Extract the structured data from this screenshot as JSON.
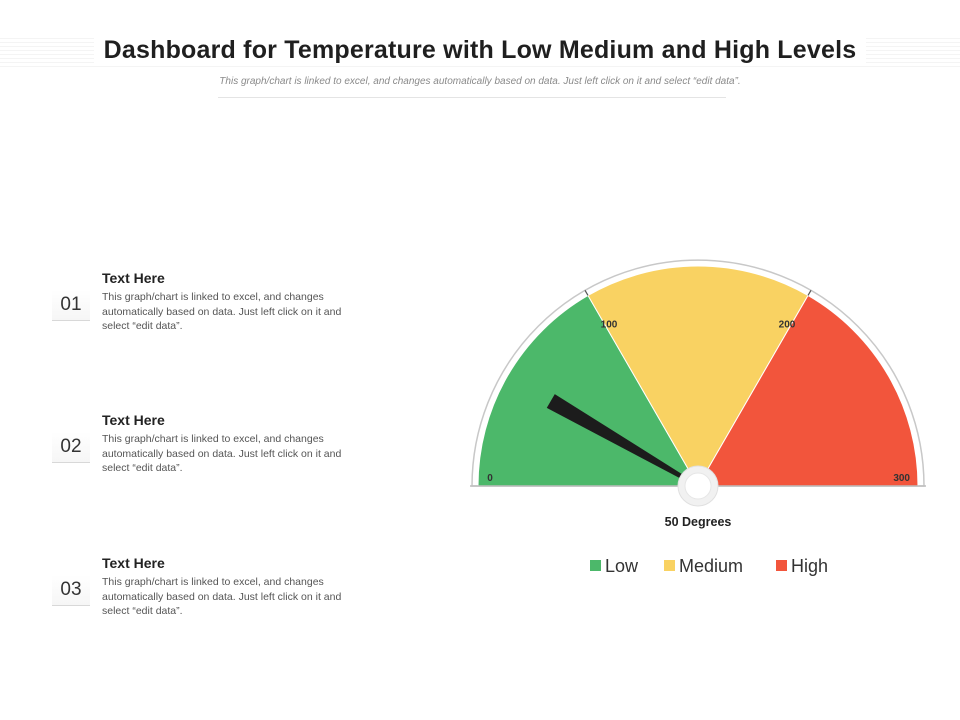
{
  "header": {
    "title": "Dashboard for Temperature with Low Medium and High Levels",
    "subtitle": "This graph/chart is linked to excel, and changes automatically based on data. Just left click on it and select “edit data”."
  },
  "items": [
    {
      "number": "01",
      "heading": "Text Here",
      "body": "This graph/chart is linked to excel, and changes automatically based on data. Just left click on it and select “edit data”."
    },
    {
      "number": "02",
      "heading": "Text Here",
      "body": "This graph/chart is linked to excel, and changes automatically based on data. Just left click on it and select “edit data”."
    },
    {
      "number": "03",
      "heading": "Text Here",
      "body": "This graph/chart is linked to excel, and changes automatically based on data. Just left click on it and select “edit data”."
    }
  ],
  "chart_data": {
    "type": "gauge",
    "range": [
      0,
      300
    ],
    "bands": [
      {
        "name": "Low",
        "from": 0,
        "to": 100,
        "color": "#4cb86a"
      },
      {
        "name": "Medium",
        "from": 100,
        "to": 200,
        "color": "#f9d262"
      },
      {
        "name": "High",
        "from": 200,
        "to": 300,
        "color": "#f2553c"
      }
    ],
    "ticks": [
      "0",
      "100",
      "200",
      "300"
    ],
    "value": 50,
    "value_label": "50 Degrees",
    "legend": [
      "Low",
      "Medium",
      "High"
    ],
    "legend_position": "bottom"
  }
}
